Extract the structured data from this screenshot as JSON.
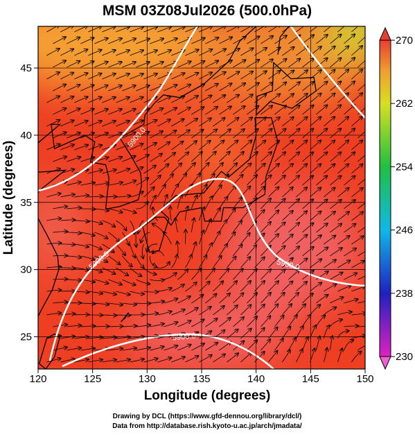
{
  "map": {
    "type": "map",
    "title": "MSM 03Z08Jul2026 (500.0hPa)",
    "xlabel": "Longitude (degrees)",
    "ylabel": "Latitude  (degrees)",
    "xlim": [
      120,
      150
    ],
    "ylim": [
      22.6,
      48.1
    ],
    "xticks": [
      120,
      125,
      130,
      135,
      140,
      145,
      150
    ],
    "yticks": [
      25,
      30,
      35,
      40,
      45
    ],
    "colorbar": {
      "lim": [
        230,
        270
      ],
      "ticks": [
        230,
        238,
        246,
        254,
        262,
        270
      ]
    },
    "contour_labels": [
      "5900.0",
      "5900.0",
      "5900.0",
      "5900.0"
    ],
    "footer": [
      "Drawing by DCL (https://www.gfd-dennou.org/library/dcl/)",
      "Data from http://database.rish.kyoto-u.ac.jp/arch/jmadata/"
    ]
  }
}
